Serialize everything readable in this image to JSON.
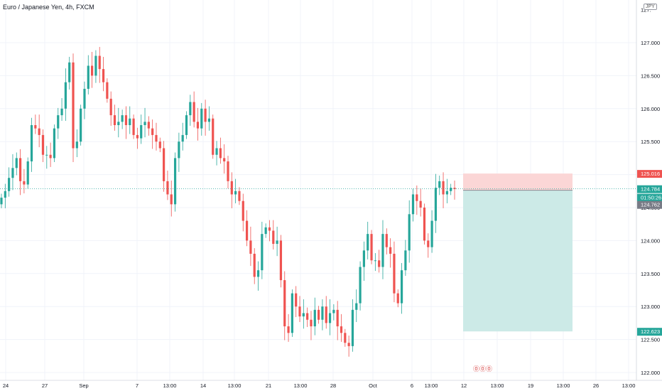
{
  "header": {
    "title": "Euro / Japanese Yen, 4h, FXCM",
    "currency_badge": "JPY"
  },
  "colors": {
    "up": "#26a69a",
    "down": "#ef5350",
    "grid": "#f0f3fa",
    "stop_zone": "#fbd6d6",
    "target_zone": "#cceae7",
    "price_line": "#26a69a"
  },
  "watermark": "⓪⓪⓪",
  "chart_data": {
    "type": "candlestick",
    "title": "Euro / Japanese Yen, 4h, FXCM",
    "ylim": [
      121.9,
      127.55
    ],
    "y_ticks": [
      "127.000",
      "126.500",
      "126.000",
      "125.500",
      "125.000",
      "124.500",
      "124.000",
      "123.500",
      "123.000",
      "122.500",
      "122.000"
    ],
    "x_ticks": [
      "24",
      "27",
      "Sep",
      "7",
      "13:00",
      "14",
      "13:00",
      "21",
      "13:00",
      "28",
      "Oct",
      "6",
      "13:00",
      "12",
      "13:00",
      "19",
      "13:00",
      "26",
      "13:00"
    ],
    "price_tags": [
      {
        "label": "125.016",
        "color": "#ef5350"
      },
      {
        "label": "124.784",
        "color": "#26a69a"
      },
      {
        "label": "01:50:26",
        "color": "#26a69a"
      },
      {
        "label": "124.762",
        "color": "#787b86"
      },
      {
        "label": "122.623",
        "color": "#26a69a"
      }
    ],
    "position": {
      "type": "short",
      "stop": 125.016,
      "entry": 124.762,
      "target": 122.623
    },
    "last_price": 124.784,
    "closes": [
      124.65,
      124.75,
      124.95,
      125.1,
      125.25,
      124.9,
      124.85,
      125.2,
      125.75,
      125.7,
      125.6,
      125.3,
      125.3,
      125.25,
      125.7,
      125.9,
      126.0,
      126.4,
      126.7,
      125.4,
      125.5,
      126.0,
      126.3,
      126.65,
      126.5,
      126.8,
      126.6,
      126.4,
      126.15,
      125.9,
      125.75,
      125.8,
      125.9,
      125.75,
      125.85,
      125.6,
      125.55,
      125.75,
      125.8,
      125.7,
      125.6,
      125.5,
      125.4,
      124.9,
      124.7,
      124.55,
      125.25,
      125.5,
      125.6,
      125.9,
      126.1,
      125.8,
      125.7,
      126.0,
      125.8,
      125.85,
      125.3,
      125.4,
      125.25,
      125.2,
      124.9,
      124.7,
      124.75,
      124.6,
      124.3,
      124.0,
      123.8,
      123.45,
      123.55,
      124.1,
      124.2,
      124.15,
      123.95,
      124.0,
      123.4,
      122.7,
      122.6,
      123.2,
      123.0,
      122.85,
      122.9,
      122.8,
      122.7,
      122.95,
      122.8,
      123.0,
      122.75,
      122.9,
      122.95,
      122.7,
      122.6,
      122.45,
      122.4,
      122.95,
      123.05,
      123.6,
      123.85,
      124.1,
      123.7,
      123.7,
      123.6,
      124.1,
      123.9,
      123.8,
      123.2,
      123.05,
      123.55,
      123.85,
      124.4,
      124.7,
      124.6,
      124.5,
      124.0,
      123.9,
      124.3,
      124.8,
      124.9,
      124.7,
      124.75,
      124.8,
      124.78
    ]
  }
}
